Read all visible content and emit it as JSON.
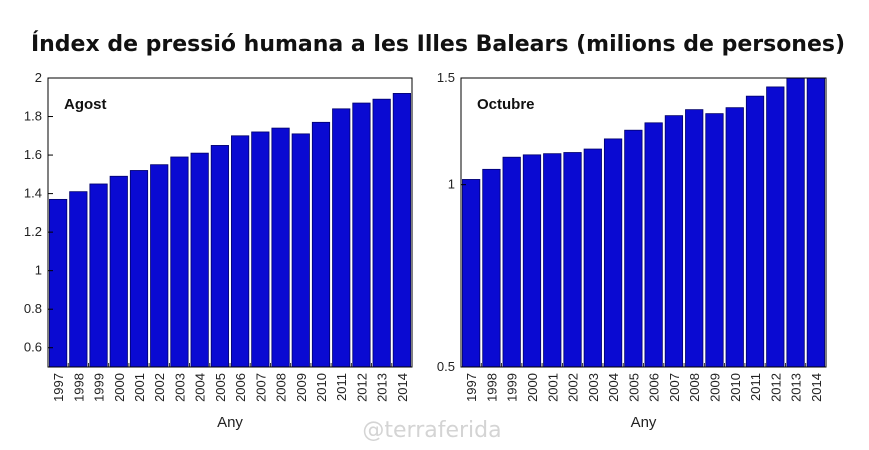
{
  "title": "Índex de pressió humana a les Illes Balears (milions de persones)",
  "watermark": "@terraferida",
  "colors": {
    "bar": "#0a0ad2",
    "bar_stroke": "#00006a"
  },
  "chart_data": [
    {
      "type": "bar",
      "panel_label": "Agost",
      "xlabel": "Any",
      "ylabel": "",
      "ylim": [
        0.5,
        2.0
      ],
      "yticks": [
        "0.6",
        "0.8",
        "1",
        "1.2",
        "1.4",
        "1.6",
        "1.8",
        "2"
      ],
      "ytick_values": [
        0.6,
        0.8,
        1.0,
        1.2,
        1.4,
        1.6,
        1.8,
        2.0
      ],
      "categories": [
        "1997",
        "1998",
        "1999",
        "2000",
        "2001",
        "2002",
        "2003",
        "2004",
        "2005",
        "2006",
        "2007",
        "2008",
        "2009",
        "2010",
        "2011",
        "2012",
        "2013",
        "2014"
      ],
      "values": [
        1.37,
        1.41,
        1.45,
        1.49,
        1.52,
        1.55,
        1.59,
        1.61,
        1.65,
        1.7,
        1.72,
        1.74,
        1.71,
        1.77,
        1.84,
        1.87,
        1.89,
        1.92
      ],
      "scale": "linear"
    },
    {
      "type": "bar",
      "panel_label": "Octubre",
      "xlabel": "Any",
      "ylabel": "",
      "ylim": [
        0.5,
        1.5
      ],
      "yticks": [
        "0.5",
        "1",
        "1.5"
      ],
      "ytick_values": [
        0.5,
        1.0,
        1.5
      ],
      "categories": [
        "1997",
        "1998",
        "1999",
        "2000",
        "2001",
        "2002",
        "2003",
        "2004",
        "2005",
        "2006",
        "2007",
        "2008",
        "2009",
        "2010",
        "2011",
        "2012",
        "2013",
        "2014"
      ],
      "values": [
        1.02,
        1.06,
        1.11,
        1.12,
        1.125,
        1.13,
        1.145,
        1.19,
        1.23,
        1.265,
        1.3,
        1.33,
        1.31,
        1.34,
        1.4,
        1.45,
        1.5,
        1.55
      ],
      "scale": "log"
    }
  ]
}
